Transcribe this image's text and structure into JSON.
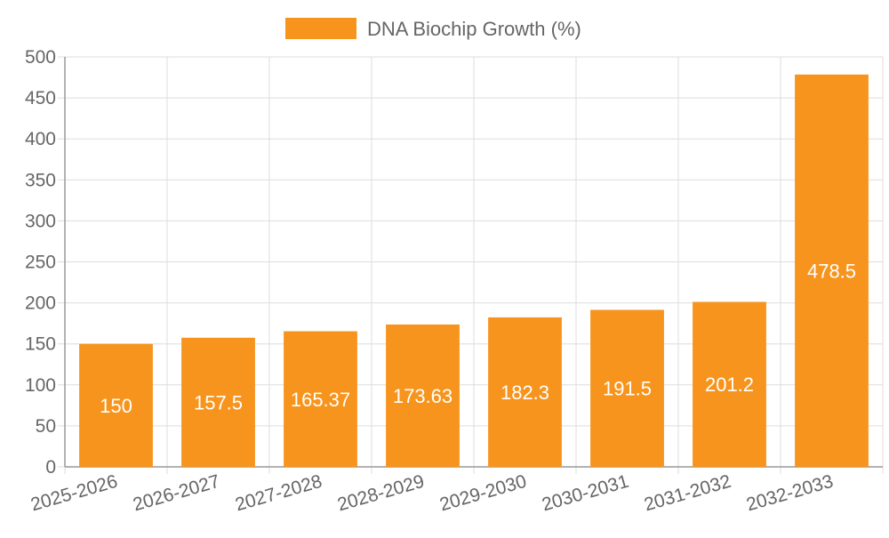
{
  "chart_data": {
    "type": "bar",
    "categories": [
      "2025-2026",
      "2026-2027",
      "2027-2028",
      "2028-2029",
      "2029-2030",
      "2030-2031",
      "2031-2032",
      "2032-2033"
    ],
    "series": [
      {
        "name": "DNA Biochip Growth (%)",
        "values": [
          150,
          157.5,
          165.37,
          173.63,
          182.3,
          191.5,
          201.2,
          478.5
        ],
        "labels": [
          "150",
          "157.5",
          "165.37",
          "173.63",
          "182.3",
          "191.5",
          "201.2",
          "478.5"
        ],
        "color": "#f7941d"
      }
    ],
    "ylim": [
      0,
      500
    ],
    "yticks": [
      0,
      50,
      100,
      150,
      200,
      250,
      300,
      350,
      400,
      450,
      500
    ],
    "legend_position": "top-center",
    "grid": true,
    "colors": {
      "grid": "#dddddd",
      "axis": "#999999",
      "tick_text": "#666666",
      "data_label": "#ffffff"
    }
  }
}
